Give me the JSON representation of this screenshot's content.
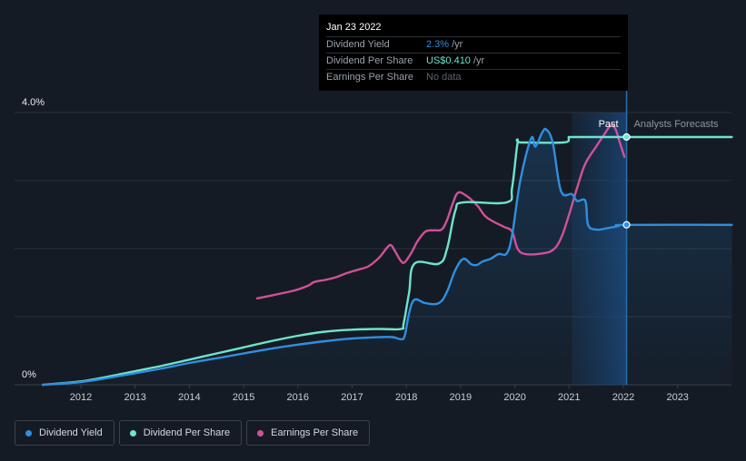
{
  "chart_data": {
    "type": "line",
    "xlim": [
      2011.0,
      2024.0
    ],
    "x_ticks": [
      "2012",
      "2013",
      "2014",
      "2015",
      "2016",
      "2017",
      "2018",
      "2019",
      "2020",
      "2021",
      "2022",
      "2023"
    ],
    "y_tick_labels": [
      "4.0%",
      "0%"
    ],
    "yield_ylim": [
      0,
      4.0
    ],
    "past_label": "Past",
    "forecast_label": "Analysts Forecasts",
    "forecast_start": 2022.06,
    "series": [
      {
        "name": "Dividend Yield",
        "color": "#2f8fe0",
        "unit": "%",
        "points": [
          [
            2011.3,
            0
          ],
          [
            2012.0,
            0.04
          ],
          [
            2012.5,
            0.1
          ],
          [
            2013.0,
            0.17
          ],
          [
            2013.5,
            0.24
          ],
          [
            2014.0,
            0.32
          ],
          [
            2014.5,
            0.39
          ],
          [
            2015.0,
            0.46
          ],
          [
            2015.5,
            0.53
          ],
          [
            2016.0,
            0.59
          ],
          [
            2016.5,
            0.64
          ],
          [
            2017.0,
            0.68
          ],
          [
            2017.5,
            0.7
          ],
          [
            2017.75,
            0.7
          ],
          [
            2017.9,
            0.67
          ],
          [
            2017.97,
            0.72
          ],
          [
            2018.05,
            1.05
          ],
          [
            2018.15,
            1.25
          ],
          [
            2018.35,
            1.2
          ],
          [
            2018.6,
            1.2
          ],
          [
            2018.75,
            1.37
          ],
          [
            2018.9,
            1.68
          ],
          [
            2019.05,
            1.85
          ],
          [
            2019.2,
            1.77
          ],
          [
            2019.3,
            1.76
          ],
          [
            2019.4,
            1.81
          ],
          [
            2019.55,
            1.85
          ],
          [
            2019.7,
            1.92
          ],
          [
            2019.85,
            1.93
          ],
          [
            2019.95,
            2.2
          ],
          [
            2020.1,
            3.0
          ],
          [
            2020.3,
            3.62
          ],
          [
            2020.38,
            3.5
          ],
          [
            2020.5,
            3.7
          ],
          [
            2020.58,
            3.75
          ],
          [
            2020.7,
            3.55
          ],
          [
            2020.85,
            2.85
          ],
          [
            2021.05,
            2.8
          ],
          [
            2021.15,
            2.7
          ],
          [
            2021.3,
            2.7
          ],
          [
            2021.35,
            2.35
          ],
          [
            2021.5,
            2.28
          ],
          [
            2021.7,
            2.3
          ],
          [
            2021.9,
            2.33
          ],
          [
            2022.06,
            2.35
          ],
          [
            2024.0,
            2.35
          ]
        ]
      },
      {
        "name": "Dividend Per Share",
        "color": "#6de4cd",
        "unit": "%",
        "points": [
          [
            2011.3,
            0
          ],
          [
            2012.0,
            0.05
          ],
          [
            2012.5,
            0.12
          ],
          [
            2013.0,
            0.2
          ],
          [
            2013.5,
            0.28
          ],
          [
            2014.0,
            0.37
          ],
          [
            2014.5,
            0.46
          ],
          [
            2015.0,
            0.55
          ],
          [
            2015.5,
            0.64
          ],
          [
            2016.0,
            0.72
          ],
          [
            2016.5,
            0.78
          ],
          [
            2017.0,
            0.81
          ],
          [
            2017.5,
            0.82
          ],
          [
            2017.9,
            0.82
          ],
          [
            2017.95,
            0.9
          ],
          [
            2018.05,
            1.35
          ],
          [
            2018.15,
            1.78
          ],
          [
            2018.6,
            1.78
          ],
          [
            2018.75,
            2.0
          ],
          [
            2018.9,
            2.55
          ],
          [
            2019.05,
            2.68
          ],
          [
            2019.85,
            2.68
          ],
          [
            2019.95,
            2.9
          ],
          [
            2020.05,
            3.55
          ],
          [
            2020.12,
            3.56
          ],
          [
            2020.9,
            3.56
          ],
          [
            2021.0,
            3.63
          ],
          [
            2021.1,
            3.64
          ],
          [
            2022.06,
            3.64
          ],
          [
            2024.0,
            3.64
          ]
        ]
      },
      {
        "name": "Earnings Per Share",
        "color": "#d0509a",
        "unit": "%",
        "points": [
          [
            2015.25,
            1.27
          ],
          [
            2015.5,
            1.31
          ],
          [
            2015.8,
            1.36
          ],
          [
            2016.0,
            1.4
          ],
          [
            2016.2,
            1.46
          ],
          [
            2016.3,
            1.51
          ],
          [
            2016.5,
            1.54
          ],
          [
            2016.7,
            1.58
          ],
          [
            2016.9,
            1.64
          ],
          [
            2017.1,
            1.69
          ],
          [
            2017.3,
            1.74
          ],
          [
            2017.5,
            1.87
          ],
          [
            2017.65,
            2.02
          ],
          [
            2017.72,
            2.05
          ],
          [
            2017.8,
            1.95
          ],
          [
            2017.9,
            1.82
          ],
          [
            2017.97,
            1.8
          ],
          [
            2018.1,
            1.95
          ],
          [
            2018.2,
            2.1
          ],
          [
            2018.35,
            2.25
          ],
          [
            2018.5,
            2.27
          ],
          [
            2018.65,
            2.28
          ],
          [
            2018.75,
            2.42
          ],
          [
            2018.85,
            2.65
          ],
          [
            2018.95,
            2.82
          ],
          [
            2019.1,
            2.78
          ],
          [
            2019.3,
            2.64
          ],
          [
            2019.45,
            2.48
          ],
          [
            2019.6,
            2.4
          ],
          [
            2019.8,
            2.32
          ],
          [
            2019.95,
            2.25
          ],
          [
            2020.05,
            2.0
          ],
          [
            2020.2,
            1.92
          ],
          [
            2020.5,
            1.93
          ],
          [
            2020.7,
            1.98
          ],
          [
            2020.85,
            2.15
          ],
          [
            2021.0,
            2.5
          ],
          [
            2021.15,
            2.9
          ],
          [
            2021.3,
            3.25
          ],
          [
            2021.5,
            3.5
          ],
          [
            2021.65,
            3.68
          ],
          [
            2021.78,
            3.82
          ],
          [
            2021.86,
            3.75
          ],
          [
            2021.92,
            3.6
          ],
          [
            2022.0,
            3.4
          ],
          [
            2022.02,
            3.35
          ]
        ]
      }
    ]
  },
  "tooltip": {
    "date": "Jan 23 2022",
    "rows": [
      {
        "name": "Dividend Yield",
        "value": "2.3%",
        "unit": "/yr",
        "color": "#2f8fe0"
      },
      {
        "name": "Dividend Per Share",
        "value": "US$0.410",
        "unit": "/yr",
        "color": "#6de4cd"
      },
      {
        "name": "Earnings Per Share",
        "value": "No data"
      }
    ]
  },
  "legend": [
    {
      "label": "Dividend Yield",
      "color": "#2f8fe0"
    },
    {
      "label": "Dividend Per Share",
      "color": "#6de4cd"
    },
    {
      "label": "Earnings Per Share",
      "color": "#d0509a"
    }
  ]
}
